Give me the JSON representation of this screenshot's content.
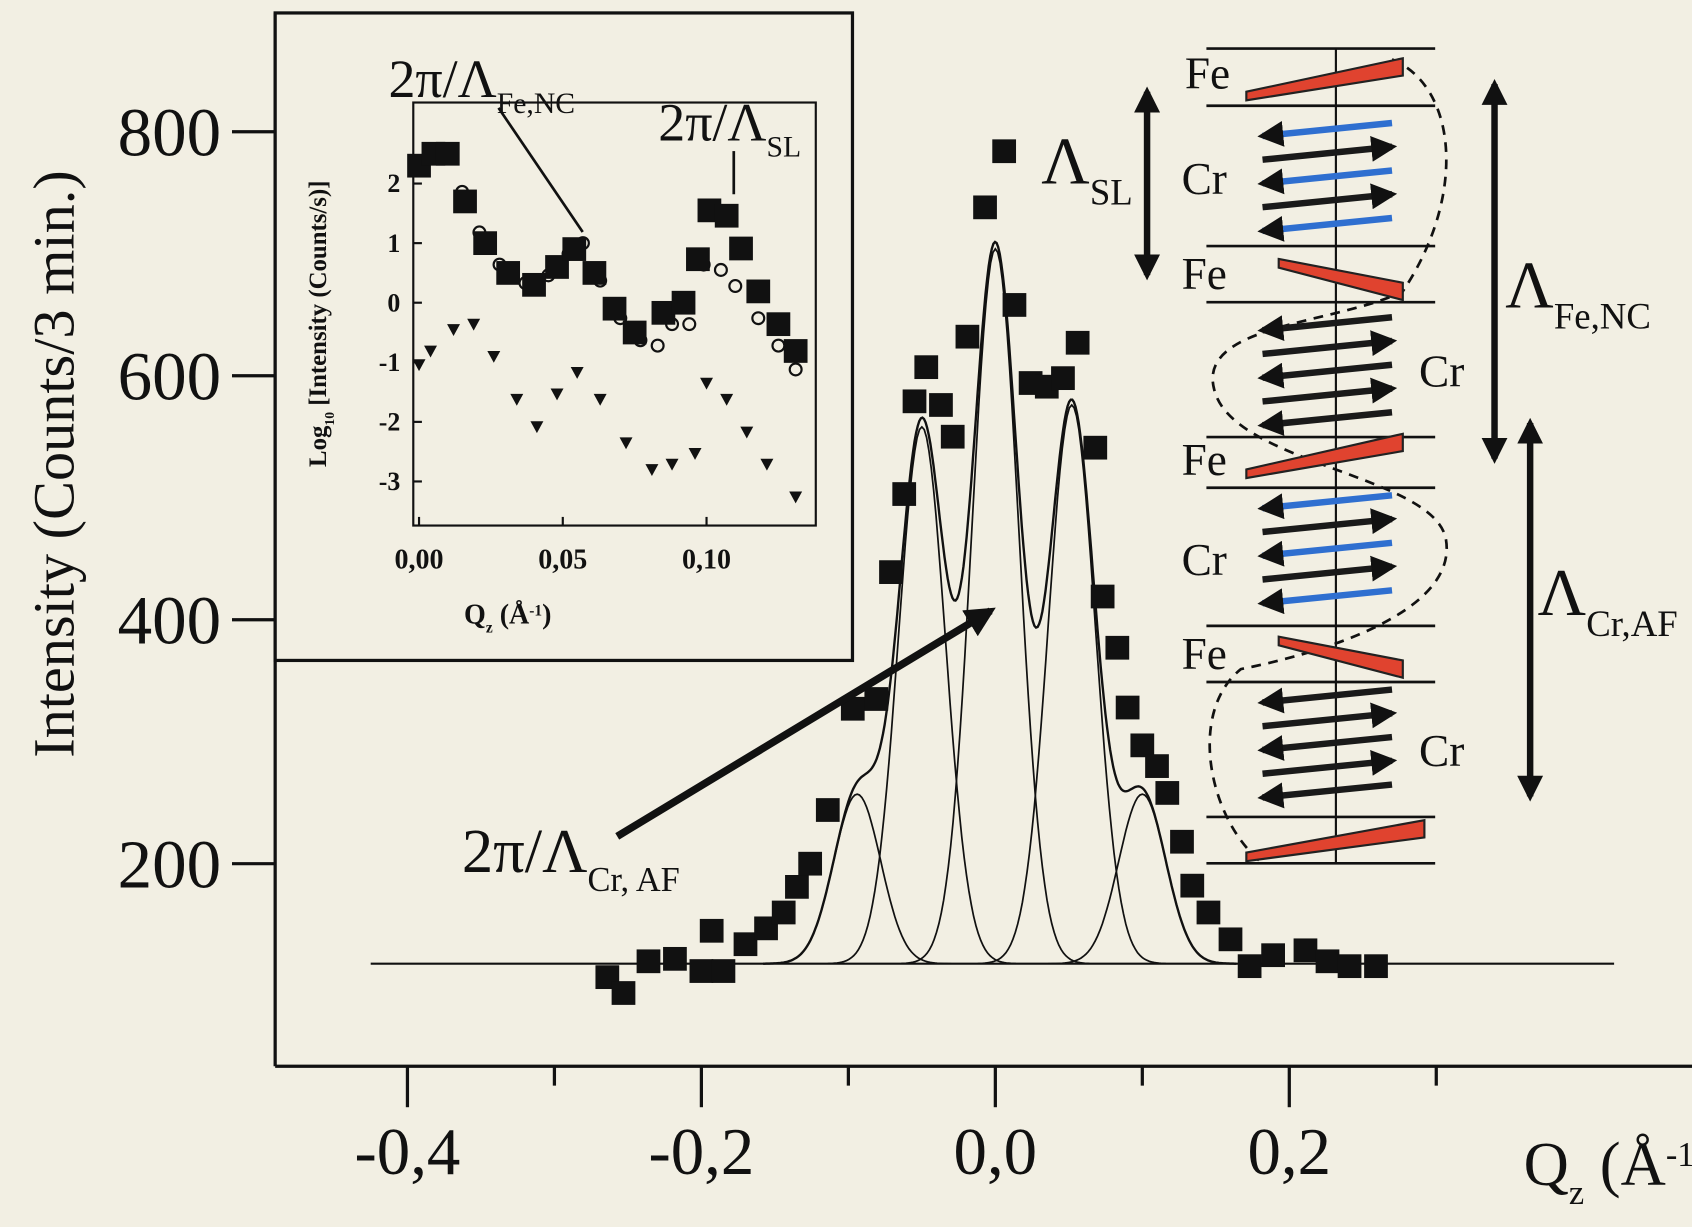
{
  "chart_data": [
    {
      "type": "scatter",
      "y_label": "Intensity (Counts/3 min.)",
      "x_label": {
        "text": "Q",
        "sub": "z",
        "unit": " (Å",
        "sup": "-1",
        "close": ")"
      },
      "x": [
        -0.264,
        -0.253,
        -0.236,
        -0.218,
        -0.2,
        -0.185,
        -0.193,
        -0.17,
        -0.156,
        -0.144,
        -0.135,
        -0.126,
        -0.114,
        -0.097,
        -0.081,
        -0.071,
        -0.062,
        -0.055,
        -0.047,
        -0.037,
        -0.029,
        -0.019,
        -0.007,
        0.006,
        0.013,
        0.024,
        0.035,
        0.046,
        0.056,
        0.068,
        0.073,
        0.083,
        0.09,
        0.1,
        0.11,
        0.117,
        0.127,
        0.134,
        0.145,
        0.16,
        0.173,
        0.189,
        0.211,
        0.226,
        0.241,
        0.259
      ],
      "values": [
        107,
        94,
        120,
        122,
        112,
        112,
        145,
        134,
        147,
        160,
        181,
        200,
        244,
        327,
        335,
        439,
        503,
        579,
        607,
        576,
        550,
        632,
        738,
        784,
        658,
        594,
        591,
        598,
        627,
        541,
        419,
        377,
        328,
        297,
        280,
        258,
        218,
        182,
        160,
        138,
        116,
        125,
        129,
        120,
        116,
        116
      ],
      "marker": "square",
      "color": "#111111",
      "fit": {
        "baseline": 118,
        "range": [
          -0.425,
          0.421
        ],
        "components": [
          {
            "center": -0.094,
            "amplitude": 139,
            "width": 0.016
          },
          {
            "center": -0.05,
            "amplitude": 440,
            "width": 0.016
          },
          {
            "center": 0.0,
            "amplitude": 586,
            "width": 0.016
          },
          {
            "center": 0.052,
            "amplitude": 458,
            "width": 0.016
          },
          {
            "center": 0.1,
            "amplitude": 139,
            "width": 0.016
          }
        ]
      },
      "xlim": [
        -0.49,
        0.474
      ],
      "ylim": [
        34,
        900
      ],
      "xticks": [
        {
          "value": -0.4,
          "label": "-0,4"
        },
        {
          "value": -0.2,
          "label": "-0,2"
        },
        {
          "value": 0.0,
          "label": "0,0"
        },
        {
          "value": 0.2,
          "label": "0,2"
        }
      ],
      "xminorticks": [
        -0.3,
        -0.1,
        0.1,
        0.3
      ],
      "yticks": [
        200,
        400,
        600,
        800
      ],
      "annotations": [
        {
          "text": "2π/Λ",
          "sub": "Cr, AF"
        }
      ]
    },
    {
      "type": "scatter",
      "y_label": {
        "text": "Log",
        "sub": "10",
        "rest": " [Intensity (Counts/s)]"
      },
      "x_label": {
        "text": "Q",
        "sub": "z",
        "unit": " (Å",
        "sup": "-1",
        "close": ")"
      },
      "series": [
        {
          "marker": "circle-open",
          "color": "#111111",
          "x": [
            0.0,
            0.004,
            0.007,
            0.015,
            0.021,
            0.028,
            0.037,
            0.045,
            0.052,
            0.057,
            0.063,
            0.07,
            0.077,
            0.083,
            0.088,
            0.094,
            0.099,
            0.105,
            0.11,
            0.118,
            0.125,
            0.131
          ],
          "values": [
            2.36,
            2.54,
            2.45,
            1.86,
            1.18,
            0.64,
            0.33,
            0.46,
            0.82,
            1.0,
            0.37,
            -0.26,
            -0.63,
            -0.72,
            -0.36,
            -0.36,
            0.64,
            0.55,
            0.28,
            -0.26,
            -0.72,
            -1.12
          ]
        },
        {
          "marker": "square",
          "color": "#111111",
          "x": [
            0.0,
            0.005,
            0.01,
            0.016,
            0.023,
            0.031,
            0.04,
            0.048,
            0.054,
            0.061,
            0.068,
            0.075,
            0.085,
            0.092,
            0.097,
            0.101,
            0.107,
            0.112,
            0.118,
            0.125,
            0.131
          ],
          "values": [
            2.3,
            2.5,
            2.5,
            1.7,
            1.0,
            0.5,
            0.3,
            0.6,
            0.9,
            0.5,
            -0.1,
            -0.5,
            -0.17,
            0.0,
            0.73,
            1.55,
            1.46,
            0.91,
            0.19,
            -0.36,
            -0.81
          ]
        },
        {
          "marker": "triangle",
          "color": "#111111",
          "x": [
            0.0,
            0.004,
            0.012,
            0.019,
            0.026,
            0.034,
            0.041,
            0.048,
            0.055,
            0.063,
            0.072,
            0.081,
            0.088,
            0.096,
            0.1,
            0.107,
            0.114,
            0.121,
            0.131
          ],
          "values": [
            -1.04,
            -0.81,
            -0.45,
            -0.36,
            -0.9,
            -1.62,
            -2.08,
            -1.53,
            -1.17,
            -1.62,
            -2.35,
            -2.8,
            -2.71,
            -2.53,
            -1.35,
            -1.62,
            -2.17,
            -2.71,
            -3.26
          ]
        }
      ],
      "xlim": [
        -0.002,
        0.138
      ],
      "ylim": [
        -3.74,
        3.36
      ],
      "xticks": [
        {
          "value": 0.0,
          "label": "0,00"
        },
        {
          "value": 0.05,
          "label": "0,05"
        },
        {
          "value": 0.1,
          "label": "0,10"
        }
      ],
      "yticks": [
        2,
        1,
        0,
        -1,
        -2,
        -3
      ],
      "annotations": [
        {
          "text": "2π/Λ",
          "sub": "Fe,NC"
        },
        {
          "text": "2π/Λ",
          "sub": "SL"
        }
      ]
    }
  ],
  "diagram": {
    "layer_labels": [
      "Fe",
      "Cr",
      "Fe",
      "Cr",
      "Fe",
      "Cr",
      "Fe",
      "Cr"
    ],
    "periods": [
      {
        "text": "Λ",
        "sub": "SL"
      },
      {
        "text": "Λ",
        "sub": "Fe,NC"
      },
      {
        "text": "Λ",
        "sub": "Cr,AF"
      }
    ]
  }
}
